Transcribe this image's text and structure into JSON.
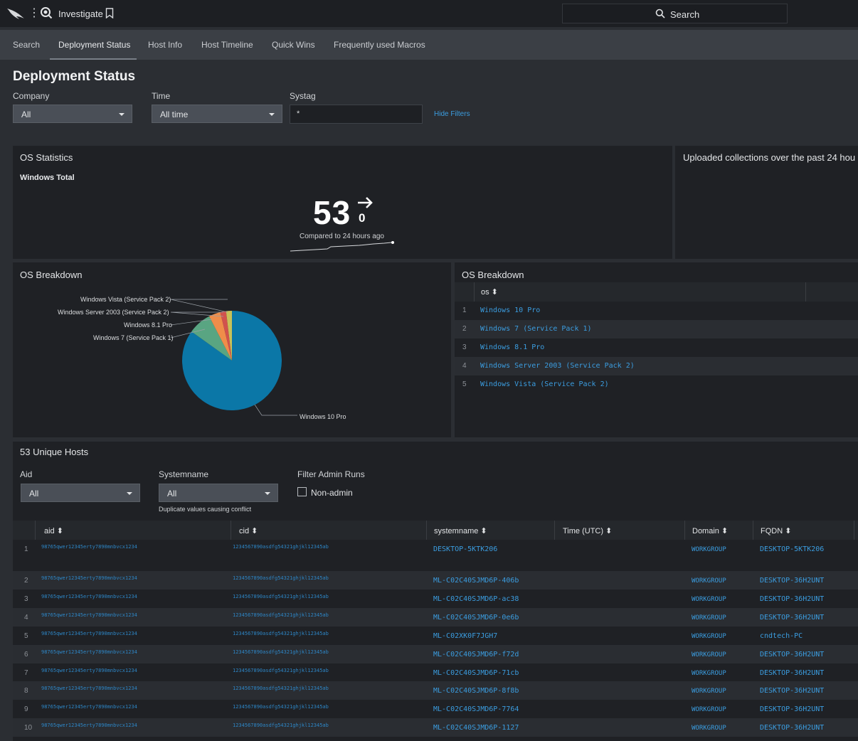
{
  "topbar": {
    "app_title": "Investigate",
    "search_label": "Search"
  },
  "nav": {
    "tabs": [
      "Search",
      "Deployment Status",
      "Host Info",
      "Host Timeline",
      "Quick Wins",
      "Frequently used Macros"
    ],
    "active": "Deployment Status"
  },
  "page": {
    "title": "Deployment Status"
  },
  "filters": {
    "company_label": "Company",
    "company_value": "All",
    "time_label": "Time",
    "time_value": "All time",
    "systag_label": "Systag",
    "systag_value": "*",
    "hide_filters": "Hide Filters"
  },
  "os_statistics": {
    "title": "OS Statistics",
    "subtitle": "Windows Total",
    "value": "53",
    "delta": "0",
    "compared": "Compared to 24 hours ago"
  },
  "uploaded": {
    "title": "Uploaded collections over the past 24 hou"
  },
  "os_breakdown_chart": {
    "title": "OS Breakdown",
    "labels": [
      "Windows Vista (Service Pack 2)",
      "Windows Server 2003 (Service Pack 2)",
      "Windows 8.1 Pro",
      "Windows 7 (Service Pack 1)",
      "Windows 10 Pro"
    ]
  },
  "chart_data": {
    "type": "pie",
    "title": "OS Breakdown",
    "categories": [
      "Windows 10 Pro",
      "Windows 7 (Service Pack 1)",
      "Windows 8.1 Pro",
      "Windows Server 2003 (Service Pack 2)",
      "Windows Vista (Service Pack 2)"
    ],
    "values": [
      45,
      4,
      2,
      1,
      1
    ],
    "colors": [
      "#0b77a7",
      "#59a582",
      "#ef8d4a",
      "#d1524d",
      "#c8c158"
    ]
  },
  "os_breakdown_table": {
    "title": "OS Breakdown",
    "column": "os ⬍",
    "rows": [
      {
        "n": "1",
        "os": "Windows 10 Pro"
      },
      {
        "n": "2",
        "os": "Windows 7 (Service Pack 1)"
      },
      {
        "n": "3",
        "os": "Windows 8.1 Pro"
      },
      {
        "n": "4",
        "os": "Windows Server 2003 (Service Pack 2)"
      },
      {
        "n": "5",
        "os": "Windows Vista (Service Pack 2)"
      }
    ]
  },
  "hosts": {
    "title": "53 Unique Hosts",
    "aid_label": "Aid",
    "aid_value": "All",
    "systemname_label": "Systemname",
    "systemname_value": "All",
    "duplicate_hint": "Duplicate values causing conflict",
    "admin_label": "Filter Admin Runs",
    "nonadmin_label": "Non-admin",
    "columns": [
      "aid ⬍",
      "cid ⬍",
      "systemname ⬍",
      "Time (UTC) ⬍",
      "Domain ⬍",
      "FQDN ⬍"
    ],
    "rows": [
      {
        "n": "1",
        "aid": "98765qwer12345erty7890mnbvcx1234",
        "cid": "1234567890asdfg54321ghjkl12345ab",
        "sys": "DESKTOP-5KTK206",
        "dom": "WORKGROUP",
        "fq": "DESKTOP-5KTK206"
      },
      {
        "n": "2",
        "aid": "98765qwer12345erty7890mnbvcx1234",
        "cid": "1234567890asdfg54321ghjkl12345ab",
        "sys": "ML-C02C40SJMD6P-406b",
        "dom": "WORKGROUP",
        "fq": "DESKTOP-36H2UNT"
      },
      {
        "n": "3",
        "aid": "98765qwer12345erty7890mnbvcx1234",
        "cid": "1234567890asdfg54321ghjkl12345ab",
        "sys": "ML-C02C40SJMD6P-ac38",
        "dom": "WORKGROUP",
        "fq": "DESKTOP-36H2UNT"
      },
      {
        "n": "4",
        "aid": "98765qwer12345erty7890mnbvcx1234",
        "cid": "1234567890asdfg54321ghjkl12345ab",
        "sys": "ML-C02C40SJMD6P-0e6b",
        "dom": "WORKGROUP",
        "fq": "DESKTOP-36H2UNT"
      },
      {
        "n": "5",
        "aid": "98765qwer12345erty7890mnbvcx1234",
        "cid": "1234567890asdfg54321ghjkl12345ab",
        "sys": "ML-C02XK0F7JGH7",
        "dom": "WORKGROUP",
        "fq": "cndtech-PC"
      },
      {
        "n": "6",
        "aid": "98765qwer12345erty7890mnbvcx1234",
        "cid": "1234567890asdfg54321ghjkl12345ab",
        "sys": "ML-C02C40SJMD6P-f72d",
        "dom": "WORKGROUP",
        "fq": "DESKTOP-36H2UNT"
      },
      {
        "n": "7",
        "aid": "98765qwer12345erty7890mnbvcx1234",
        "cid": "1234567890asdfg54321ghjkl12345ab",
        "sys": "ML-C02C40SJMD6P-71cb",
        "dom": "WORKGROUP",
        "fq": "DESKTOP-36H2UNT"
      },
      {
        "n": "8",
        "aid": "98765qwer12345erty7890mnbvcx1234",
        "cid": "1234567890asdfg54321ghjkl12345ab",
        "sys": "ML-C02C40SJMD6P-8f8b",
        "dom": "WORKGROUP",
        "fq": "DESKTOP-36H2UNT"
      },
      {
        "n": "9",
        "aid": "98765qwer12345erty7890mnbvcx1234",
        "cid": "1234567890asdfg54321ghjkl12345ab",
        "sys": "ML-C02C40SJMD6P-7764",
        "dom": "WORKGROUP",
        "fq": "DESKTOP-36H2UNT"
      },
      {
        "n": "10",
        "aid": "98765qwer12345erty7890mnbvcx1234",
        "cid": "1234567890asdfg54321ghjkl12345ab",
        "sys": "ML-C02C40SJMD6P-1127",
        "dom": "WORKGROUP",
        "fq": "DESKTOP-36H2UNT"
      }
    ]
  }
}
